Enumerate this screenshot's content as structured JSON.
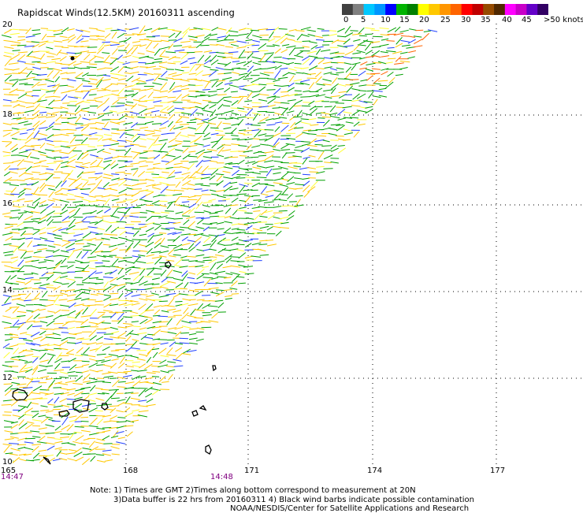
{
  "title": "Rapidscat Winds(12.5KM) 20160311 ascending",
  "legend": {
    "colors": [
      "#404040",
      "#808080",
      "#00c8ff",
      "#0096ff",
      "#0000ff",
      "#00b400",
      "#008000",
      "#ffff00",
      "#ffc800",
      "#ff9600",
      "#ff6400",
      "#ff0000",
      "#c00000",
      "#964b00",
      "#502800",
      "#ff00ff",
      "#c800c8",
      "#6400c8",
      "#320064"
    ],
    "labels": [
      "0",
      "5",
      "10",
      "15",
      "20",
      "25",
      "30",
      "35",
      "40",
      "45",
      ">50 knots"
    ]
  },
  "axes": {
    "x_ticks": [
      "165",
      "168",
      "171",
      "174",
      "177"
    ],
    "y_ticks": [
      "20",
      "18",
      "16",
      "14",
      "12",
      "10"
    ],
    "time_labels": [
      "14:47",
      "14:48"
    ]
  },
  "notes": [
    "Note: 1) Times are GMT 2)Times along bottom correspond to measurement at 20N",
    "3)Data buffer is 22 hrs from 20160311 4) Black wind barbs indicate possible contamination",
    "NOAA/NESDIS/Center for Satellite Applications and Research"
  ]
}
